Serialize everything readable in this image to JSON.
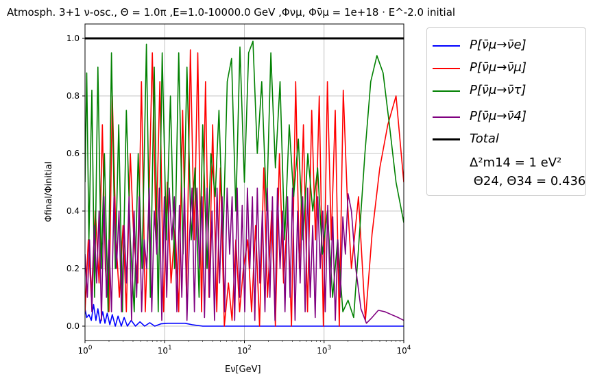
{
  "chart_data": {
    "type": "line",
    "title": "Atmosph. 3+1 ν-osc., Θ = 1.0π ,E=1.0-10000.0 GeV  ,Φνμ, Φν̄μ = 1e+18 · E^-2.0 initial",
    "xlabel": "Eν[GeV]",
    "ylabel": "Φfinal/Φinitial",
    "xscale": "log",
    "xlim": [
      1,
      10000
    ],
    "ylim": [
      -0.05,
      1.05
    ],
    "grid": true,
    "legend_position": "outside-right",
    "xticks": [
      "10^0",
      "10^1",
      "10^2",
      "10^3",
      "10^4"
    ],
    "yticks": [
      "0.0",
      "0.2",
      "0.4",
      "0.6",
      "0.8",
      "1.0"
    ],
    "legend_note": "Δ²m14 = 1 eV²\n Θ24, Θ34 = 0.436",
    "series": [
      {
        "name": "P[ν̄μ→ν̄e]",
        "color": "#0000ff",
        "x": [
          1.0,
          1.05,
          1.12,
          1.2,
          1.28,
          1.37,
          1.45,
          1.55,
          1.67,
          1.78,
          1.9,
          2.05,
          2.2,
          2.4,
          2.6,
          2.85,
          3.1,
          3.4,
          3.8,
          4.3,
          4.9,
          5.6,
          6.5,
          7.5,
          9.0,
          11,
          14,
          18,
          22,
          30,
          50,
          100,
          1000,
          10000
        ],
        "y": [
          0.06,
          0.03,
          0.04,
          0.02,
          0.075,
          0.02,
          0.06,
          0.01,
          0.05,
          0.01,
          0.045,
          0.005,
          0.04,
          0.0,
          0.035,
          0.0,
          0.03,
          0.0,
          0.02,
          0.0,
          0.015,
          0.0,
          0.012,
          0.0,
          0.008,
          0.01,
          0.01,
          0.01,
          0.005,
          0.0,
          0.0,
          0.0,
          0.0,
          0.0
        ]
      },
      {
        "name": "P[ν̄μ→ν̄μ]",
        "color": "#ff0000",
        "x": [
          1.0,
          1.1,
          1.2,
          1.35,
          1.5,
          1.65,
          1.8,
          2.0,
          2.2,
          2.45,
          2.7,
          3.0,
          3.3,
          3.7,
          4.1,
          4.6,
          5.1,
          5.7,
          6.3,
          7.0,
          7.8,
          8.7,
          9.7,
          10.8,
          12,
          13.5,
          15,
          16.8,
          18.8,
          21,
          23.5,
          26,
          29,
          32.5,
          36,
          40,
          45,
          50,
          56,
          63,
          70,
          78,
          87,
          97,
          110,
          123,
          138,
          155,
          175,
          195,
          220,
          245,
          275,
          310,
          350,
          390,
          440,
          490,
          550,
          620,
          700,
          780,
          870,
          980,
          1100,
          1230,
          1380,
          1550,
          1740,
          1950,
          2200,
          2700,
          3300,
          4000,
          5000,
          6300,
          8000,
          10000
        ],
        "y": [
          0.05,
          0.3,
          0.1,
          0.4,
          0.15,
          0.7,
          0.2,
          0.05,
          0.8,
          0.3,
          0.1,
          0.35,
          0.05,
          0.6,
          0.3,
          0.15,
          0.85,
          0.05,
          0.4,
          0.95,
          0.3,
          0.85,
          0.05,
          0.5,
          0.15,
          0.35,
          0.05,
          0.75,
          0.1,
          0.96,
          0.3,
          0.95,
          0.05,
          0.85,
          0.1,
          0.7,
          0.05,
          0.55,
          0.0,
          0.15,
          0.02,
          0.3,
          0.05,
          0.2,
          0.3,
          0.05,
          0.35,
          0.0,
          0.55,
          0.1,
          0.4,
          0.0,
          0.6,
          0.15,
          0.4,
          0.0,
          0.85,
          0.2,
          0.7,
          0.05,
          0.75,
          0.3,
          0.8,
          0.0,
          0.85,
          0.3,
          0.75,
          0.0,
          0.82,
          0.45,
          0.2,
          0.45,
          0.02,
          0.32,
          0.55,
          0.7,
          0.8,
          0.5
        ]
      },
      {
        "name": "P[ν̄μ→ν̄τ]",
        "color": "#008000",
        "x": [
          1.0,
          1.05,
          1.12,
          1.22,
          1.32,
          1.45,
          1.6,
          1.75,
          1.95,
          2.15,
          2.4,
          2.65,
          2.95,
          3.3,
          3.7,
          4.15,
          4.65,
          5.2,
          5.9,
          6.6,
          7.4,
          8.3,
          9.3,
          10.5,
          11.8,
          13.3,
          15,
          17,
          19,
          21.5,
          24,
          27,
          30,
          34,
          38,
          43,
          48,
          54,
          61,
          69,
          78,
          88,
          100,
          113,
          128,
          145,
          165,
          190,
          215,
          245,
          280,
          320,
          365,
          415,
          475,
          545,
          625,
          720,
          830,
          950,
          1100,
          1280,
          1480,
          1720,
          2000,
          2350,
          2750,
          3250,
          3850,
          4600,
          5500,
          6600,
          8000,
          10000
        ],
        "y": [
          0.5,
          0.88,
          0.3,
          0.82,
          0.1,
          0.9,
          0.2,
          0.6,
          0.05,
          0.95,
          0.2,
          0.7,
          0.05,
          0.75,
          0.3,
          0.05,
          0.6,
          0.2,
          0.98,
          0.1,
          0.9,
          0.05,
          0.95,
          0.3,
          0.8,
          0.2,
          0.95,
          0.25,
          0.9,
          0.3,
          0.55,
          0.1,
          0.7,
          0.2,
          0.6,
          0.45,
          0.75,
          0.3,
          0.85,
          0.93,
          0.4,
          0.97,
          0.5,
          0.95,
          0.99,
          0.6,
          0.85,
          0.4,
          0.95,
          0.55,
          0.85,
          0.3,
          0.7,
          0.45,
          0.65,
          0.3,
          0.6,
          0.4,
          0.55,
          0.25,
          0.4,
          0.1,
          0.3,
          0.05,
          0.09,
          0.03,
          0.3,
          0.6,
          0.85,
          0.94,
          0.88,
          0.7,
          0.5,
          0.36
        ]
      },
      {
        "name": "P[ν̄μ→ν̄4]",
        "color": "#800080",
        "x": [
          1.0,
          1.07,
          1.14,
          1.22,
          1.31,
          1.4,
          1.5,
          1.61,
          1.73,
          1.86,
          2.0,
          2.15,
          2.31,
          2.48,
          2.67,
          2.87,
          3.09,
          3.32,
          3.57,
          3.84,
          4.13,
          4.44,
          4.78,
          5.14,
          5.53,
          5.95,
          6.4,
          6.88,
          7.4,
          7.96,
          8.56,
          9.2,
          9.9,
          10.6,
          11.4,
          12.3,
          13.2,
          14.2,
          15.3,
          16.4,
          17.7,
          19,
          20.4,
          22,
          23.6,
          25.4,
          27.3,
          29.4,
          31.6,
          34,
          36.5,
          39.3,
          42.2,
          45.4,
          48.8,
          52.5,
          56.5,
          60.7,
          65.3,
          70.2,
          75.5,
          81.2,
          87.3,
          93.9,
          101,
          109,
          117,
          126,
          135,
          145,
          156,
          168,
          181,
          194,
          209,
          225,
          242,
          260,
          280,
          301,
          323,
          348,
          374,
          402,
          432,
          465,
          500,
          538,
          578,
          622,
          669,
          719,
          773,
          832,
          894,
          962,
          1034,
          1112,
          1196,
          1286,
          1383,
          1488,
          1600,
          1720,
          1850,
          2000,
          2200,
          2500,
          2900,
          3400,
          4000,
          4800,
          5800,
          7000,
          8500,
          10000
        ],
        "y": [
          0.25,
          0.1,
          0.3,
          0.05,
          0.35,
          0.15,
          0.4,
          0.02,
          0.45,
          0.1,
          0.3,
          0.05,
          0.45,
          0.2,
          0.4,
          0.05,
          0.35,
          0.15,
          0.45,
          0.02,
          0.4,
          0.1,
          0.45,
          0.05,
          0.3,
          0.2,
          0.48,
          0.05,
          0.4,
          0.25,
          0.48,
          0.02,
          0.45,
          0.1,
          0.48,
          0.3,
          0.45,
          0.05,
          0.42,
          0.1,
          0.48,
          0.02,
          0.3,
          0.48,
          0.05,
          0.48,
          0.2,
          0.45,
          0.03,
          0.48,
          0.1,
          0.4,
          0.02,
          0.48,
          0.15,
          0.45,
          0.05,
          0.48,
          0.25,
          0.45,
          0.02,
          0.48,
          0.1,
          0.42,
          0.05,
          0.48,
          0.2,
          0.45,
          0.02,
          0.48,
          0.15,
          0.4,
          0.05,
          0.48,
          0.1,
          0.45,
          0.02,
          0.48,
          0.2,
          0.4,
          0.05,
          0.45,
          0.1,
          0.48,
          0.02,
          0.4,
          0.15,
          0.45,
          0.05,
          0.48,
          0.1,
          0.35,
          0.03,
          0.45,
          0.2,
          0.4,
          0.05,
          0.42,
          0.1,
          0.38,
          0.02,
          0.3,
          0.1,
          0.38,
          0.25,
          0.46,
          0.4,
          0.2,
          0.06,
          0.01,
          0.03,
          0.055,
          0.05,
          0.04,
          0.03,
          0.02
        ]
      },
      {
        "name": "Total",
        "color": "#000000",
        "x": [
          1,
          10000
        ],
        "y": [
          1.0,
          1.0
        ]
      }
    ]
  }
}
